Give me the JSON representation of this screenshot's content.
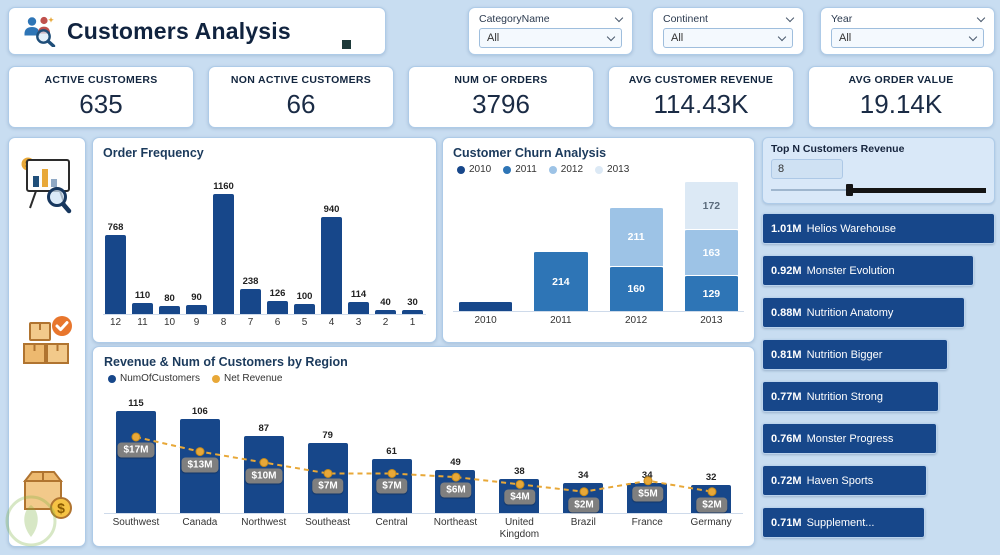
{
  "header": {
    "title": "Customers Analysis",
    "filters": [
      {
        "label": "CategoryName",
        "value": "All"
      },
      {
        "label": "Continent",
        "value": "All"
      },
      {
        "label": "Year",
        "value": "All"
      }
    ]
  },
  "kpis": [
    {
      "label": "ACTIVE CUSTOMERS",
      "value": "635"
    },
    {
      "label": "NON ACTIVE CUSTOMERS",
      "value": "66"
    },
    {
      "label": "NUM OF ORDERS",
      "value": "3796"
    },
    {
      "label": "AVG CUSTOMER REVENUE",
      "value": "114.43K"
    },
    {
      "label": "AVG ORDER VALUE",
      "value": "19.14K"
    }
  ],
  "colors": {
    "page_bg": "#C8DDF1",
    "navy": "#17478A",
    "blue_2011": "#2E75B6",
    "blue_2012": "#9DC3E6",
    "blue_2013": "#DCE9F5",
    "gold_line": "#E8A838",
    "label_chip_gray": "#7F7F7F"
  },
  "chart_data": [
    {
      "id": "order_frequency",
      "type": "bar",
      "title": "Order Frequency",
      "categories": [
        "12",
        "11",
        "10",
        "9",
        "8",
        "7",
        "6",
        "5",
        "4",
        "3",
        "2",
        "1"
      ],
      "values": [
        768,
        110,
        80,
        90,
        1160,
        238,
        126,
        100,
        940,
        114,
        40,
        30
      ],
      "bar_color": "#17478A",
      "xlabel": "",
      "ylabel": "",
      "ylim": [
        0,
        1160
      ],
      "grid": false
    },
    {
      "id": "churn",
      "type": "bar",
      "subtype": "stacked",
      "title": "Customer Churn Analysis",
      "categories": [
        "2010",
        "2011",
        "2012",
        "2013"
      ],
      "legend_position": "top",
      "series": [
        {
          "name": "2010",
          "color": "#17478A",
          "label_color": "#FFFFFF",
          "values": [
            35,
            0,
            0,
            0
          ]
        },
        {
          "name": "2011",
          "color": "#2E75B6",
          "label_color": "#FFFFFF",
          "values": [
            0,
            214,
            160,
            129
          ]
        },
        {
          "name": "2012",
          "color": "#9DC3E6",
          "label_color": "#FFFFFF",
          "values": [
            0,
            0,
            211,
            163
          ]
        },
        {
          "name": "2013",
          "color": "#DCE9F5",
          "label_color": "#5B6B7C",
          "values": [
            0,
            0,
            0,
            172
          ]
        }
      ]
    },
    {
      "id": "region",
      "type": "bar",
      "subtype": "combo-bar-line",
      "title": "Revenue & Num of Customers by Region",
      "categories": [
        "Southwest",
        "Canada",
        "Northwest",
        "Southeast",
        "Central",
        "Northeast",
        "United Kingdom",
        "Brazil",
        "France",
        "Germany"
      ],
      "legend_position": "top-left",
      "series": [
        {
          "name": "NumOfCustomers",
          "type": "bar",
          "color": "#17478A",
          "values": [
            115,
            106,
            87,
            79,
            61,
            49,
            38,
            34,
            34,
            32
          ]
        },
        {
          "name": "Net Revenue",
          "type": "line",
          "color": "#E8A838",
          "values_label": [
            "$17M",
            "$13M",
            "$10M",
            "$7M",
            "$7M",
            "$6M",
            "$4M",
            "$2M",
            "$5M",
            "$2M"
          ],
          "values_millions": [
            17,
            13,
            10,
            7,
            7,
            6,
            4,
            2,
            5,
            2
          ]
        }
      ]
    },
    {
      "id": "top_n",
      "type": "bar",
      "subtype": "horizontal",
      "title": "Top N Customers Revenue",
      "slicer_value": "8",
      "items": [
        {
          "value_label": "1.01M",
          "name": "Helios Warehouse",
          "value": 1.01
        },
        {
          "value_label": "0.92M",
          "name": "Monster Evolution",
          "value": 0.92
        },
        {
          "value_label": "0.88M",
          "name": "Nutrition Anatomy",
          "value": 0.88
        },
        {
          "value_label": "0.81M",
          "name": "Nutrition Bigger",
          "value": 0.81
        },
        {
          "value_label": "0.77M",
          "name": "Nutrition Strong",
          "value": 0.77
        },
        {
          "value_label": "0.76M",
          "name": "Monster Progress",
          "value": 0.76
        },
        {
          "value_label": "0.72M",
          "name": "Haven Sports",
          "value": 0.72
        },
        {
          "value_label": "0.71M",
          "name": "Supplement...",
          "value": 0.71
        }
      ]
    }
  ]
}
